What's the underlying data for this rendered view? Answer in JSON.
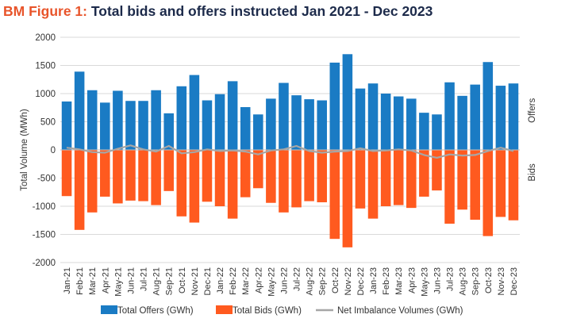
{
  "figure": {
    "prefix": "BM Figure 1:",
    "title": "Total bids and offers instructed Jan 2021 - Dec 2023"
  },
  "colors": {
    "offers": "#1a7bc4",
    "bids": "#ff5a1f",
    "net": "#a6a6a6",
    "grid": "#d9d9d9"
  },
  "chart_data": {
    "type": "bar",
    "title": "Total bids and offers instructed Jan 2021 - Dec 2023",
    "ylabel": "Total Volume (MWh)",
    "right_labels": {
      "top": "Offers",
      "bottom": "Bids"
    },
    "ylim": [
      -2000,
      2000
    ],
    "yticks": [
      2000,
      1500,
      1000,
      500,
      0,
      -500,
      -1000,
      -1500,
      -2000
    ],
    "grid": true,
    "legend_position": "bottom",
    "categories": [
      "Jan-21",
      "Feb-21",
      "Mar-21",
      "Apr-21",
      "May-21",
      "Jun-21",
      "Jul-21",
      "Aug-21",
      "Sep-21",
      "Oct-21",
      "Nov-21",
      "Dec-21",
      "Jan-22",
      "Feb-22",
      "Mar-22",
      "Apr-22",
      "May-22",
      "Jun-22",
      "Jul-22",
      "Aug-22",
      "Sep-22",
      "Oct-22",
      "Nov-22",
      "Dec-22",
      "Jan-23",
      "Feb-23",
      "Mar-23",
      "Apr-23",
      "May-23",
      "Jun-23",
      "Jul-23",
      "Aug-23",
      "Sep-23",
      "Oct-23",
      "Nov-23",
      "Dec-23"
    ],
    "series": [
      {
        "name": "Total Offers (GWh)",
        "kind": "bar",
        "values": [
          860,
          1390,
          1060,
          840,
          1050,
          870,
          870,
          1060,
          650,
          1130,
          1330,
          880,
          990,
          1220,
          760,
          630,
          910,
          1190,
          970,
          900,
          880,
          1550,
          1700,
          1090,
          1180,
          1000,
          950,
          910,
          660,
          630,
          1200,
          960,
          1160,
          1560,
          1140,
          1180
        ]
      },
      {
        "name": "Total Bids (GWh)",
        "kind": "bar",
        "values": [
          -820,
          -1420,
          -1110,
          -830,
          -950,
          -900,
          -910,
          -980,
          -730,
          -1180,
          -1290,
          -920,
          -1000,
          -1220,
          -840,
          -680,
          -940,
          -1110,
          -1020,
          -910,
          -930,
          -1580,
          -1730,
          -1040,
          -1220,
          -1000,
          -980,
          -1030,
          -830,
          -720,
          -1310,
          -1060,
          -1240,
          -1530,
          -1190,
          -1250
        ]
      },
      {
        "name": "Net Imbalance Volumes (GWh)",
        "kind": "line",
        "values": [
          40,
          10,
          -40,
          -50,
          20,
          80,
          10,
          -30,
          70,
          -60,
          -40,
          10,
          -20,
          -10,
          -30,
          -80,
          -10,
          10,
          70,
          -20,
          -50,
          -30,
          -20,
          30,
          -20,
          -10,
          10,
          -10,
          -90,
          -140,
          -80,
          -100,
          -90,
          -20,
          40,
          -20
        ]
      }
    ]
  }
}
